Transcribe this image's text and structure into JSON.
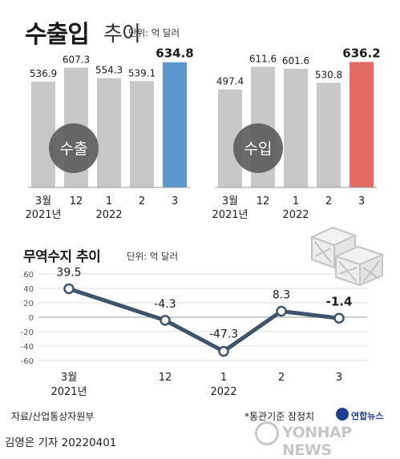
{
  "header": {
    "title_bold": "수출입",
    "title_light": "추이",
    "unit": "단위: 억 달러"
  },
  "line_header": {
    "title": "무역수지 추이",
    "unit": "단위: 억 달러"
  },
  "footer": {
    "source": "자료/산업통상자원부",
    "note": "*통관기준 잠정치",
    "logo_text": "연합뉴스",
    "watermark": "YONHAP NEWS",
    "byline": "김영은 기자  20220401"
  },
  "colors": {
    "bar_gray": "#c8c8c8",
    "export_highlight": "#5b97cc",
    "import_highlight": "#e36b62",
    "line": "#3d546c",
    "badge": "#5d5d5d"
  },
  "chart_data": [
    {
      "type": "bar",
      "badge": "수출",
      "categories": [
        "3월 2021년",
        "12",
        "1 2022",
        "2",
        "3"
      ],
      "tick_labels": [
        [
          "3월",
          "2021년"
        ],
        [
          "12"
        ],
        [
          "1",
          "2022"
        ],
        [
          "2"
        ],
        [
          "3"
        ]
      ],
      "values": [
        536.9,
        607.3,
        554.3,
        539.1,
        634.8
      ],
      "value_labels": [
        "536.9",
        "607.3",
        "554.3",
        "539.1",
        "634.8"
      ],
      "highlight_index": 4
    },
    {
      "type": "bar",
      "badge": "수입",
      "categories": [
        "3월 2021년",
        "12",
        "1 2022",
        "2",
        "3"
      ],
      "tick_labels": [
        [
          "3월",
          "2021년"
        ],
        [
          "12"
        ],
        [
          "1",
          "2022"
        ],
        [
          "2"
        ],
        [
          "3"
        ]
      ],
      "values": [
        497.4,
        611.6,
        601.6,
        530.8,
        636.2
      ],
      "value_labels": [
        "497.4",
        "611.6",
        "601.6",
        "530.8",
        "636.2"
      ],
      "highlight_index": 4
    },
    {
      "type": "line",
      "categories": [
        "3월 2021년",
        "12",
        "1 2022",
        "2",
        "3"
      ],
      "tick_labels": [
        [
          "3월",
          "2021년"
        ],
        [
          "12"
        ],
        [
          "1",
          "2022"
        ],
        [
          "2"
        ],
        [
          "3"
        ]
      ],
      "values": [
        39.5,
        -4.3,
        -47.3,
        8.3,
        -1.4
      ],
      "value_labels": [
        "39.5",
        "-4.3",
        "-47.3",
        "8.3",
        "-1.4"
      ],
      "ylim": [
        -60,
        60
      ],
      "yticks": [
        60,
        40,
        20,
        0,
        -20,
        -40,
        -60
      ],
      "grid": true
    }
  ]
}
